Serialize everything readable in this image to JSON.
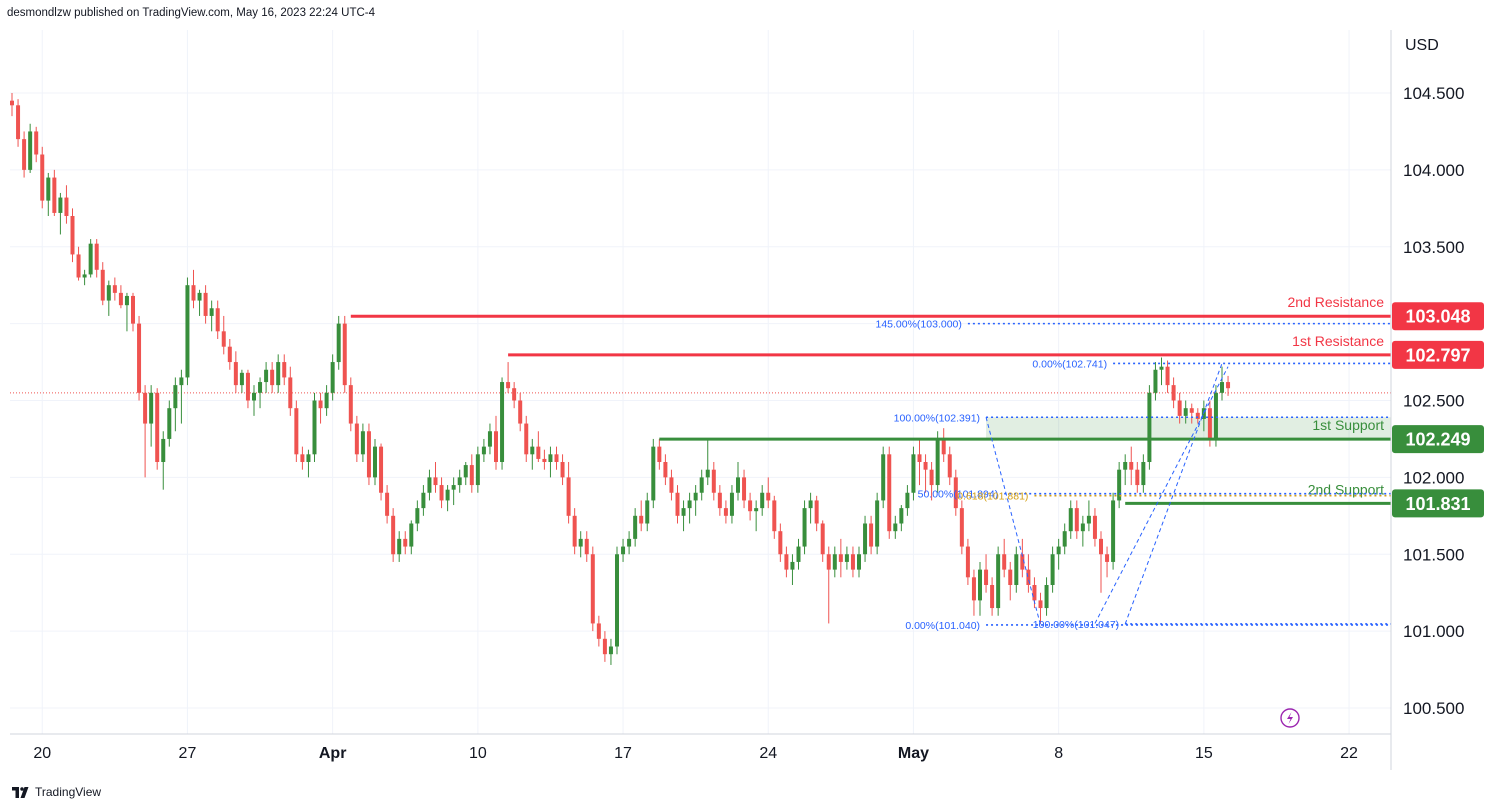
{
  "header": {
    "published_by": "desmondlzw published on TradingView.com, May 16, 2023 22:24 UTC-4"
  },
  "footer": {
    "brand": "TradingView"
  },
  "chart_data": {
    "type": "candlestick",
    "currency": "USD",
    "ylim": [
      100.35,
      105.1
    ],
    "y_ticks": [
      "104.500",
      "104.000",
      "103.500",
      "102.500",
      "102.000",
      "101.500",
      "101.000",
      "100.500"
    ],
    "x_ticks": [
      {
        "label": "20",
        "bar": 5,
        "bold": false
      },
      {
        "label": "27",
        "bar": 29,
        "bold": false
      },
      {
        "label": "Apr",
        "bar": 53,
        "bold": true
      },
      {
        "label": "10",
        "bar": 77,
        "bold": false
      },
      {
        "label": "17",
        "bar": 101,
        "bold": false
      },
      {
        "label": "24",
        "bar": 125,
        "bold": false
      },
      {
        "label": "May",
        "bar": 149,
        "bold": true
      },
      {
        "label": "8",
        "bar": 173,
        "bold": false
      },
      {
        "label": "15",
        "bar": 197,
        "bold": false
      },
      {
        "label": "22",
        "bar": 221,
        "bold": false
      }
    ],
    "bar_count_visible": 228,
    "current_price": 102.55,
    "price_labels": [
      {
        "value": "103.048",
        "price": 103.048,
        "color": "#f23645"
      },
      {
        "value": "102.797",
        "price": 102.797,
        "color": "#f23645"
      },
      {
        "value": "102.249",
        "price": 102.249,
        "color": "#388e3c"
      },
      {
        "value": "101.831",
        "price": 101.831,
        "color": "#388e3c"
      }
    ],
    "levels": [
      {
        "name": "2nd Resistance",
        "price": 103.048,
        "from_bar": 56,
        "color": "#f23645",
        "label_color": "#f23645"
      },
      {
        "name": "1st Resistance",
        "price": 102.797,
        "from_bar": 82,
        "color": "#f23645",
        "label_color": "#f23645"
      },
      {
        "name": "1st Support",
        "price": 102.249,
        "from_bar": 107,
        "color": "#388e3c",
        "label_color": "#388e3c"
      },
      {
        "name": "2nd Support",
        "price": 101.831,
        "from_bar": 184,
        "color": "#388e3c",
        "label_color": "#388e3c"
      }
    ],
    "support_zone": {
      "from_bar": 161,
      "low": 102.249,
      "high": 102.391
    },
    "fib_levels": [
      {
        "text": "145.00%(103.000)",
        "price": 103.0,
        "from_bar": 158,
        "color": "#2962ff"
      },
      {
        "text": "0.00%(102.741)",
        "price": 102.741,
        "from_bar": 182,
        "color": "#2962ff"
      },
      {
        "text": "100.00%(102.391)",
        "price": 102.391,
        "from_bar": 161,
        "color": "#2962ff"
      },
      {
        "text": "50.00%(101.894)",
        "price": 101.894,
        "from_bar": 164,
        "color": "#2962ff"
      },
      {
        "text": "0.618(101.881)",
        "price": 101.881,
        "from_bar": 169,
        "color": "#d4a017"
      },
      {
        "text": "0.00%(101.040)",
        "price": 101.04,
        "from_bar": 161,
        "color": "#2962ff"
      },
      {
        "text": "100.00%(101.047)",
        "price": 101.047,
        "from_bar": 184,
        "color": "#2962ff"
      }
    ],
    "up_color": "#388e3c",
    "down_color": "#ef5350",
    "resistance_color": "#f23645",
    "support_color": "#388e3c",
    "fib_color": "#2962ff",
    "ohlc": [
      [
        104.45,
        104.5,
        104.35,
        104.42
      ],
      [
        104.42,
        104.46,
        104.15,
        104.2
      ],
      [
        104.2,
        104.25,
        103.95,
        104.0
      ],
      [
        104.0,
        104.3,
        103.98,
        104.25
      ],
      [
        104.25,
        104.28,
        104.05,
        104.1
      ],
      [
        104.1,
        104.15,
        103.75,
        103.8
      ],
      [
        103.8,
        103.98,
        103.7,
        103.95
      ],
      [
        103.95,
        104.0,
        103.7,
        103.72
      ],
      [
        103.72,
        103.85,
        103.58,
        103.82
      ],
      [
        103.82,
        103.9,
        103.65,
        103.7
      ],
      [
        103.7,
        103.75,
        103.4,
        103.45
      ],
      [
        103.45,
        103.5,
        103.28,
        103.3
      ],
      [
        103.3,
        103.35,
        103.25,
        103.32
      ],
      [
        103.32,
        103.55,
        103.3,
        103.52
      ],
      [
        103.52,
        103.55,
        103.3,
        103.35
      ],
      [
        103.35,
        103.4,
        103.12,
        103.15
      ],
      [
        103.15,
        103.28,
        103.05,
        103.25
      ],
      [
        103.25,
        103.3,
        103.15,
        103.2
      ],
      [
        103.2,
        103.25,
        103.1,
        103.12
      ],
      [
        103.12,
        103.2,
        102.95,
        103.18
      ],
      [
        103.18,
        103.2,
        102.95,
        103.0
      ],
      [
        103.0,
        103.05,
        102.5,
        102.55
      ],
      [
        102.55,
        102.6,
        102.0,
        102.35
      ],
      [
        102.35,
        102.6,
        102.2,
        102.55
      ],
      [
        102.55,
        102.58,
        102.05,
        102.1
      ],
      [
        102.1,
        102.3,
        101.92,
        102.25
      ],
      [
        102.25,
        102.5,
        102.2,
        102.45
      ],
      [
        102.45,
        102.65,
        102.3,
        102.6
      ],
      [
        102.6,
        102.7,
        102.35,
        102.65
      ],
      [
        102.65,
        103.3,
        102.6,
        103.25
      ],
      [
        103.25,
        103.35,
        103.1,
        103.15
      ],
      [
        103.15,
        103.22,
        103.05,
        103.2
      ],
      [
        103.2,
        103.25,
        103.0,
        103.05
      ],
      [
        103.05,
        103.15,
        102.95,
        103.1
      ],
      [
        103.1,
        103.15,
        102.9,
        102.95
      ],
      [
        102.95,
        103.05,
        102.8,
        102.85
      ],
      [
        102.85,
        102.9,
        102.7,
        102.75
      ],
      [
        102.75,
        102.82,
        102.55,
        102.6
      ],
      [
        102.6,
        102.7,
        102.55,
        102.68
      ],
      [
        102.68,
        102.7,
        102.45,
        102.5
      ],
      [
        102.5,
        102.6,
        102.4,
        102.55
      ],
      [
        102.55,
        102.65,
        102.45,
        102.62
      ],
      [
        102.62,
        102.75,
        102.55,
        102.7
      ],
      [
        102.7,
        102.75,
        102.55,
        102.6
      ],
      [
        102.6,
        102.8,
        102.55,
        102.75
      ],
      [
        102.75,
        102.8,
        102.6,
        102.65
      ],
      [
        102.65,
        102.72,
        102.4,
        102.45
      ],
      [
        102.45,
        102.5,
        102.1,
        102.15
      ],
      [
        102.15,
        102.2,
        102.05,
        102.1
      ],
      [
        102.1,
        102.18,
        102.0,
        102.15
      ],
      [
        102.15,
        102.55,
        102.1,
        102.5
      ],
      [
        102.5,
        102.55,
        102.35,
        102.45
      ],
      [
        102.45,
        102.6,
        102.4,
        102.55
      ],
      [
        102.55,
        102.8,
        102.5,
        102.75
      ],
      [
        102.75,
        103.05,
        102.7,
        103.0
      ],
      [
        103.0,
        103.05,
        102.55,
        102.6
      ],
      [
        102.6,
        102.65,
        102.3,
        102.35
      ],
      [
        102.35,
        102.4,
        102.1,
        102.15
      ],
      [
        102.15,
        102.35,
        102.1,
        102.3
      ],
      [
        102.3,
        102.35,
        101.95,
        102.0
      ],
      [
        102.0,
        102.25,
        101.95,
        102.2
      ],
      [
        102.2,
        102.22,
        101.85,
        101.9
      ],
      [
        101.9,
        101.95,
        101.7,
        101.75
      ],
      [
        101.75,
        101.8,
        101.45,
        101.5
      ],
      [
        101.5,
        101.65,
        101.45,
        101.6
      ],
      [
        101.6,
        101.65,
        101.5,
        101.55
      ],
      [
        101.55,
        101.72,
        101.5,
        101.7
      ],
      [
        101.7,
        101.85,
        101.65,
        101.8
      ],
      [
        101.8,
        101.95,
        101.75,
        101.9
      ],
      [
        101.9,
        102.05,
        101.85,
        102.0
      ],
      [
        102.0,
        102.1,
        101.9,
        101.95
      ],
      [
        101.95,
        102.0,
        101.8,
        101.85
      ],
      [
        101.85,
        101.95,
        101.78,
        101.92
      ],
      [
        101.92,
        102.0,
        101.82,
        101.95
      ],
      [
        101.95,
        102.05,
        101.9,
        102.0
      ],
      [
        102.0,
        102.1,
        101.95,
        102.08
      ],
      [
        102.08,
        102.15,
        101.9,
        101.95
      ],
      [
        101.95,
        102.2,
        101.9,
        102.15
      ],
      [
        102.15,
        102.25,
        102.1,
        102.2
      ],
      [
        102.2,
        102.35,
        102.15,
        102.3
      ],
      [
        102.3,
        102.4,
        102.05,
        102.1
      ],
      [
        102.1,
        102.65,
        102.05,
        102.62
      ],
      [
        102.62,
        102.75,
        102.55,
        102.58
      ],
      [
        102.58,
        102.62,
        102.45,
        102.5
      ],
      [
        102.5,
        102.55,
        102.3,
        102.35
      ],
      [
        102.35,
        102.4,
        102.1,
        102.15
      ],
      [
        102.15,
        102.25,
        102.05,
        102.2
      ],
      [
        102.2,
        102.3,
        102.1,
        102.12
      ],
      [
        102.12,
        102.18,
        102.05,
        102.1
      ],
      [
        102.1,
        102.2,
        102.0,
        102.15
      ],
      [
        102.15,
        102.2,
        102.05,
        102.1
      ],
      [
        102.1,
        102.15,
        101.95,
        102.0
      ],
      [
        102.0,
        102.1,
        101.7,
        101.75
      ],
      [
        101.75,
        101.8,
        101.5,
        101.55
      ],
      [
        101.55,
        101.65,
        101.48,
        101.6
      ],
      [
        101.6,
        101.65,
        101.45,
        101.5
      ],
      [
        101.5,
        101.55,
        101.0,
        101.05
      ],
      [
        101.05,
        101.1,
        100.9,
        100.95
      ],
      [
        100.95,
        101.0,
        100.8,
        100.85
      ],
      [
        100.85,
        100.95,
        100.78,
        100.9
      ],
      [
        100.9,
        101.55,
        100.85,
        101.5
      ],
      [
        101.5,
        101.6,
        101.45,
        101.55
      ],
      [
        101.55,
        101.65,
        101.5,
        101.6
      ],
      [
        101.6,
        101.8,
        101.55,
        101.75
      ],
      [
        101.75,
        101.85,
        101.65,
        101.7
      ],
      [
        101.7,
        101.9,
        101.65,
        101.85
      ],
      [
        101.85,
        102.25,
        101.8,
        102.2
      ],
      [
        102.2,
        102.25,
        102.05,
        102.1
      ],
      [
        102.1,
        102.15,
        101.95,
        102.0
      ],
      [
        102.0,
        102.05,
        101.85,
        101.9
      ],
      [
        101.9,
        101.95,
        101.7,
        101.75
      ],
      [
        101.75,
        101.85,
        101.65,
        101.8
      ],
      [
        101.8,
        101.9,
        101.7,
        101.85
      ],
      [
        101.85,
        101.95,
        101.75,
        101.9
      ],
      [
        101.9,
        102.05,
        101.85,
        102.0
      ],
      [
        102.0,
        102.25,
        101.95,
        102.05
      ],
      [
        102.05,
        102.1,
        101.85,
        101.9
      ],
      [
        101.9,
        101.95,
        101.75,
        101.8
      ],
      [
        101.8,
        101.85,
        101.7,
        101.75
      ],
      [
        101.75,
        101.95,
        101.7,
        101.9
      ],
      [
        101.9,
        102.1,
        101.85,
        102.0
      ],
      [
        102.0,
        102.05,
        101.8,
        101.85
      ],
      [
        101.85,
        101.9,
        101.72,
        101.78
      ],
      [
        101.78,
        101.85,
        101.65,
        101.8
      ],
      [
        101.8,
        101.95,
        101.75,
        101.9
      ],
      [
        101.9,
        102.0,
        101.8,
        101.85
      ],
      [
        101.85,
        101.88,
        101.6,
        101.65
      ],
      [
        101.65,
        101.7,
        101.45,
        101.5
      ],
      [
        101.5,
        101.55,
        101.35,
        101.4
      ],
      [
        101.4,
        101.5,
        101.3,
        101.45
      ],
      [
        101.45,
        101.6,
        101.4,
        101.55
      ],
      [
        101.55,
        101.85,
        101.5,
        101.8
      ],
      [
        101.8,
        101.9,
        101.7,
        101.85
      ],
      [
        101.85,
        101.88,
        101.65,
        101.7
      ],
      [
        101.7,
        101.72,
        101.45,
        101.5
      ],
      [
        101.5,
        101.55,
        101.05,
        101.4
      ],
      [
        101.4,
        101.55,
        101.35,
        101.5
      ],
      [
        101.5,
        101.6,
        101.35,
        101.45
      ],
      [
        101.45,
        101.55,
        101.4,
        101.5
      ],
      [
        101.5,
        101.55,
        101.35,
        101.4
      ],
      [
        101.4,
        101.55,
        101.35,
        101.5
      ],
      [
        101.5,
        101.75,
        101.45,
        101.7
      ],
      [
        101.7,
        101.75,
        101.5,
        101.55
      ],
      [
        101.55,
        101.9,
        101.5,
        101.85
      ],
      [
        101.85,
        102.2,
        101.8,
        102.15
      ],
      [
        102.15,
        102.2,
        101.6,
        101.65
      ],
      [
        101.65,
        101.75,
        101.6,
        101.7
      ],
      [
        101.7,
        101.82,
        101.65,
        101.8
      ],
      [
        101.8,
        101.95,
        101.75,
        101.9
      ],
      [
        101.9,
        102.2,
        101.85,
        102.15
      ],
      [
        102.15,
        102.25,
        101.95,
        102.1
      ],
      [
        102.1,
        102.15,
        101.9,
        102.05
      ],
      [
        102.05,
        102.1,
        101.85,
        101.95
      ],
      [
        101.95,
        102.3,
        101.9,
        102.25
      ],
      [
        102.25,
        102.32,
        102.1,
        102.15
      ],
      [
        102.15,
        102.2,
        101.95,
        102.0
      ],
      [
        102.0,
        102.05,
        101.75,
        101.8
      ],
      [
        101.8,
        101.85,
        101.5,
        101.55
      ],
      [
        101.55,
        101.6,
        101.3,
        101.35
      ],
      [
        101.35,
        101.4,
        101.1,
        101.2
      ],
      [
        101.2,
        101.45,
        101.1,
        101.4
      ],
      [
        101.4,
        101.5,
        101.25,
        101.3
      ],
      [
        101.3,
        101.35,
        101.1,
        101.15
      ],
      [
        101.15,
        101.55,
        101.1,
        101.5
      ],
      [
        101.5,
        101.6,
        101.35,
        101.4
      ],
      [
        101.4,
        101.45,
        101.2,
        101.3
      ],
      [
        101.3,
        101.55,
        101.25,
        101.5
      ],
      [
        101.5,
        101.6,
        101.35,
        101.4
      ],
      [
        101.4,
        101.5,
        101.25,
        101.3
      ],
      [
        101.3,
        101.35,
        101.15,
        101.2
      ],
      [
        101.2,
        101.25,
        101.05,
        101.15
      ],
      [
        101.15,
        101.35,
        101.1,
        101.3
      ],
      [
        101.3,
        101.55,
        101.25,
        101.5
      ],
      [
        101.5,
        101.6,
        101.4,
        101.55
      ],
      [
        101.55,
        101.7,
        101.5,
        101.65
      ],
      [
        101.65,
        101.85,
        101.6,
        101.8
      ],
      [
        101.8,
        101.85,
        101.6,
        101.65
      ],
      [
        101.65,
        101.75,
        101.55,
        101.7
      ],
      [
        101.7,
        101.85,
        101.65,
        101.75
      ],
      [
        101.75,
        101.8,
        101.55,
        101.6
      ],
      [
        101.6,
        101.65,
        101.25,
        101.5
      ],
      [
        101.5,
        101.55,
        101.35,
        101.45
      ],
      [
        101.45,
        101.9,
        101.4,
        101.85
      ],
      [
        101.85,
        102.1,
        101.8,
        102.05
      ],
      [
        102.05,
        102.15,
        101.95,
        102.1
      ],
      [
        102.1,
        102.2,
        101.95,
        102.05
      ],
      [
        102.05,
        102.1,
        101.9,
        101.95
      ],
      [
        101.95,
        102.15,
        101.9,
        102.1
      ],
      [
        102.1,
        102.6,
        102.05,
        102.55
      ],
      [
        102.55,
        102.75,
        102.5,
        102.7
      ],
      [
        102.7,
        102.78,
        102.6,
        102.72
      ],
      [
        102.72,
        102.76,
        102.55,
        102.6
      ],
      [
        102.6,
        102.65,
        102.45,
        102.5
      ],
      [
        102.5,
        102.55,
        102.35,
        102.4
      ],
      [
        102.4,
        102.5,
        102.35,
        102.45
      ],
      [
        102.45,
        102.48,
        102.35,
        102.42
      ],
      [
        102.42,
        102.45,
        102.35,
        102.38
      ],
      [
        102.38,
        102.5,
        102.3,
        102.45
      ],
      [
        102.45,
        102.5,
        102.2,
        102.25
      ],
      [
        102.25,
        102.6,
        102.2,
        102.55
      ],
      [
        102.55,
        102.72,
        102.5,
        102.62
      ],
      [
        102.62,
        102.66,
        102.53,
        102.58
      ]
    ]
  }
}
